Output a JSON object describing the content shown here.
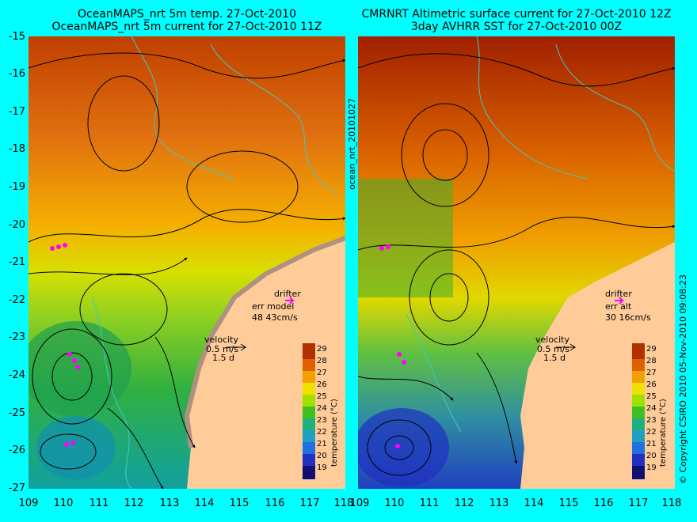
{
  "left_panel": {
    "title_line1": "OceanMAPS_nrt 5m temp. 27-Oct-2010",
    "title_line2": "OceanMAPS_nrt 5m current for 27-Oct-2010 11Z",
    "drifter_label": "drifter",
    "drifter_err_label": "err model",
    "drifter_err_values": "48 43cm/s",
    "velocity_label": "velocity",
    "velocity_scale": "0.5 m/s",
    "velocity_time": "1.5 d"
  },
  "right_panel": {
    "title_line1": "CMRNRT Altimetric surface current for 27-Oct-2010 12Z",
    "title_line2": "3day AVHRR SST for 27-Oct-2010 00Z",
    "drifter_label": "drifter",
    "drifter_err_label": "err alt",
    "drifter_err_values": "30 16cm/s",
    "velocity_label": "velocity",
    "velocity_scale": "0.5 m/s",
    "velocity_time": "1.5 d"
  },
  "x_ticks": [
    "109",
    "110",
    "111",
    "112",
    "113",
    "114",
    "115",
    "116",
    "117",
    "118"
  ],
  "y_ticks": [
    "-15",
    "-16",
    "-17",
    "-18",
    "-19",
    "-20",
    "-21",
    "-22",
    "-23",
    "-24",
    "-25",
    "-26",
    "-27"
  ],
  "colorbar": {
    "ticks": [
      "29",
      "28",
      "27",
      "26",
      "25",
      "24",
      "23",
      "22",
      "21",
      "20",
      "19"
    ],
    "label": "temperature (°C)"
  },
  "side_text": {
    "run_id": "ocean_nrt_20101027",
    "copyright": "© Copyright CSIRO 2010   05-Nov-2010 09:08:23"
  },
  "colors": {
    "background": "#00ffff",
    "land": "#ffcc99",
    "drifter": "#ff00ff",
    "coastline": "#40c8c8"
  }
}
